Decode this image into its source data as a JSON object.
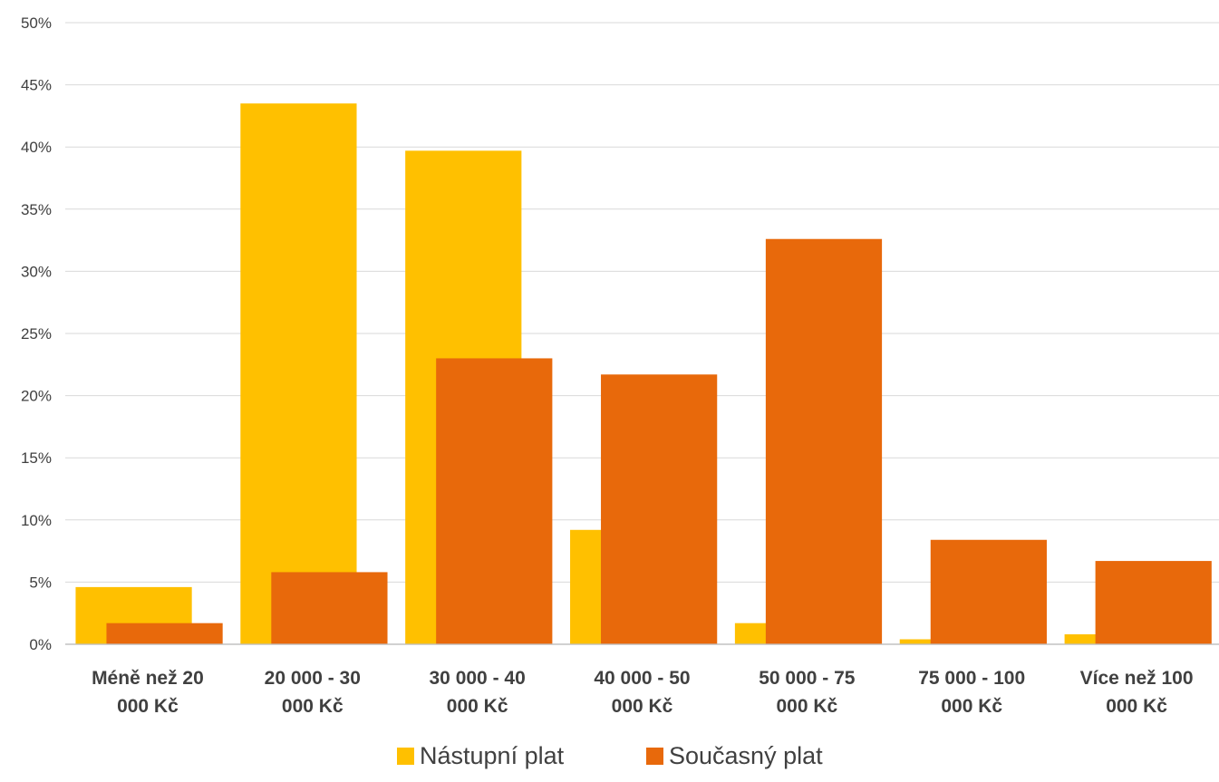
{
  "chart_data": {
    "type": "bar",
    "categories": [
      [
        "Méně než 20",
        "000 Kč"
      ],
      [
        "20 000 - 30",
        "000 Kč"
      ],
      [
        "30 000 - 40",
        "000 Kč"
      ],
      [
        "40 000 - 50",
        "000 Kč"
      ],
      [
        "50 000 - 75",
        "000 Kč"
      ],
      [
        "75 000 - 100",
        "000 Kč"
      ],
      [
        "Více než 100",
        "000 Kč"
      ]
    ],
    "series": [
      {
        "name": "Nástupní plat",
        "color": "#FFC000",
        "values": [
          4.6,
          43.5,
          39.7,
          9.2,
          1.7,
          0.4,
          0.8
        ]
      },
      {
        "name": "Současný plat",
        "color": "#E8690B",
        "values": [
          1.7,
          5.8,
          23.0,
          21.7,
          32.6,
          8.4,
          6.7
        ]
      }
    ],
    "ylim": [
      0,
      50
    ],
    "yticks": [
      0,
      5,
      10,
      15,
      20,
      25,
      30,
      35,
      40,
      45,
      50
    ],
    "ytick_suffix": "%",
    "grid": true,
    "legend_position": "bottom"
  }
}
